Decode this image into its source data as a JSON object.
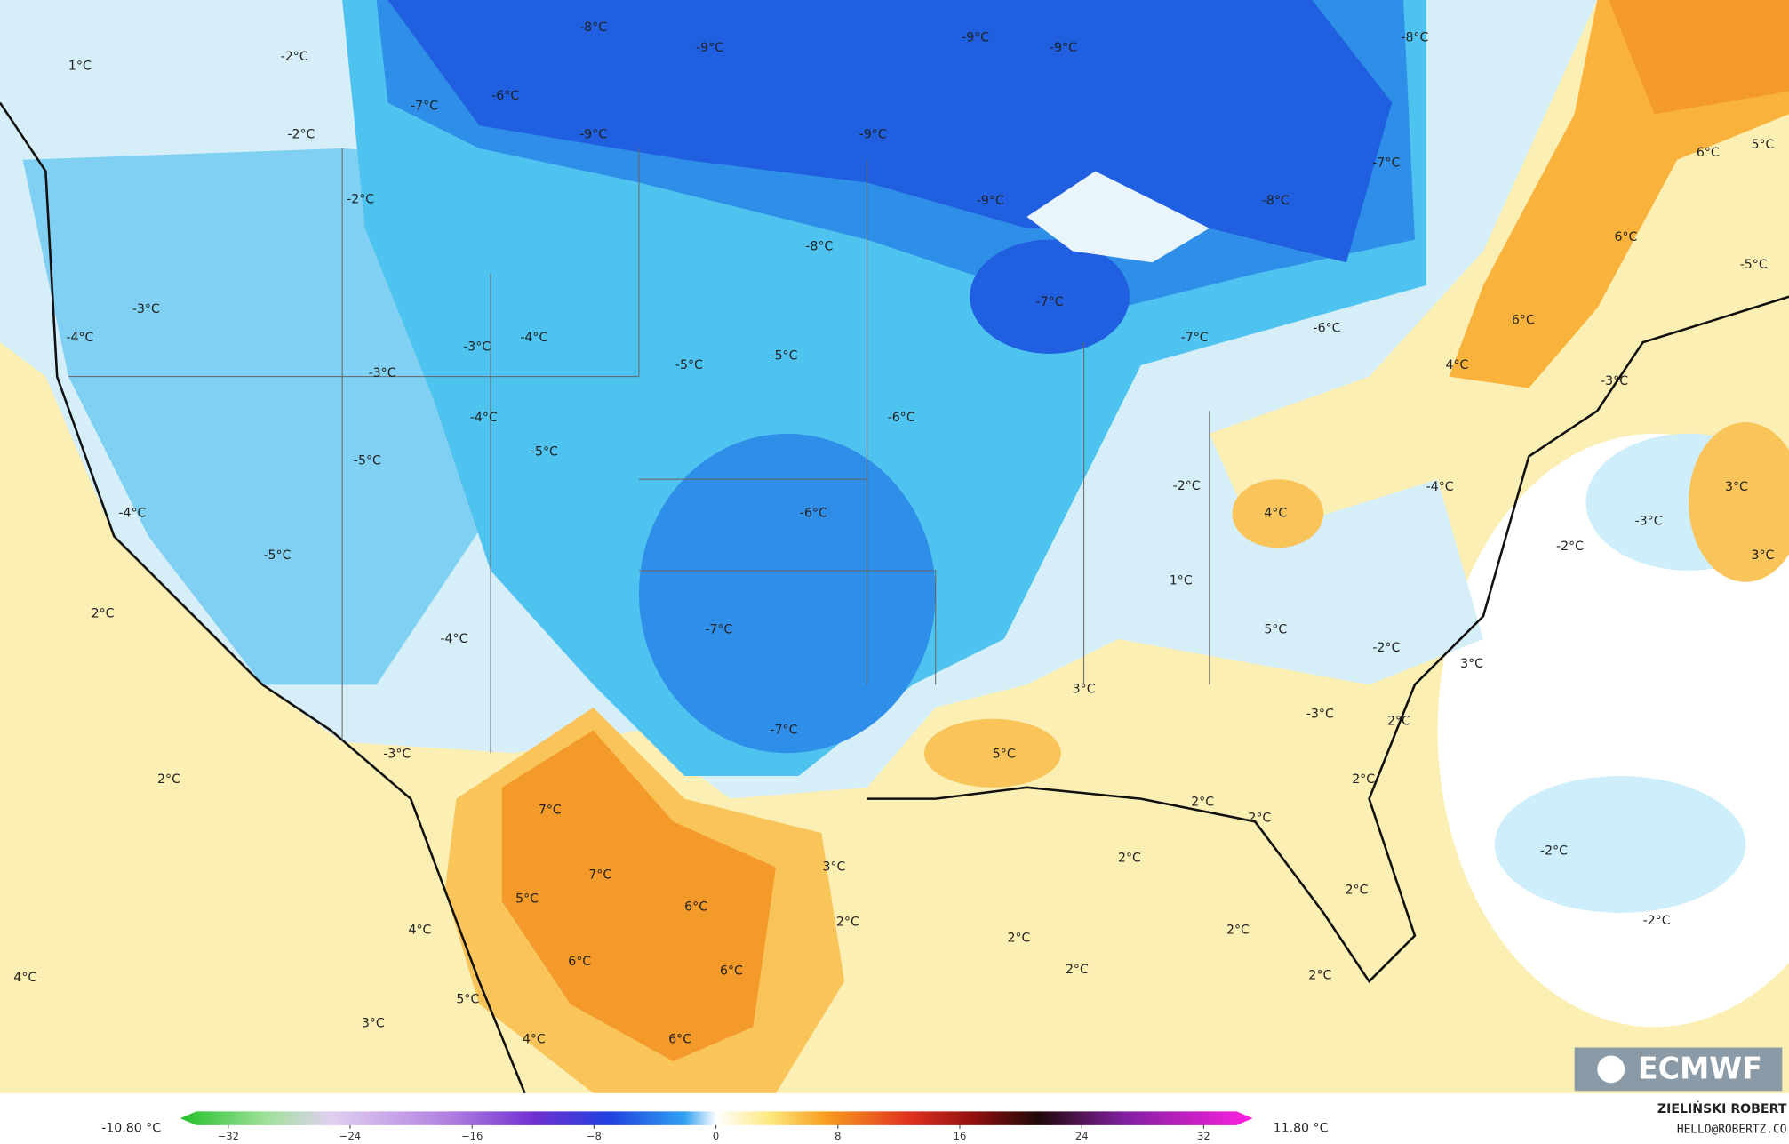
{
  "map": {
    "labels": [
      "1°C",
      "-2°C",
      "-8°C",
      "-9°C",
      "-9°C",
      "-9°C",
      "-8°C",
      "-7°C",
      "-6°C",
      "-2°C",
      "-9°C",
      "-9°C",
      "-7°C",
      "-2°C",
      "-9°C",
      "-8°C",
      "6°C",
      "5°C",
      "-8°C",
      "6°C",
      "-5°C",
      "-3°C",
      "-7°C",
      "-4°C",
      "-3°C",
      "-4°C",
      "-5°C",
      "-5°C",
      "-7°C",
      "-6°C",
      "6°C",
      "-3°C",
      "4°C",
      "-3°C",
      "-4°C",
      "-6°C",
      "-5°C",
      "-5°C",
      "-2°C",
      "-4°C",
      "3°C",
      "-4°C",
      "-6°C",
      "4°C",
      "-3°C",
      "-2°C",
      "3°C",
      "-5°C",
      "2°C",
      "1°C",
      "5°C",
      "-7°C",
      "-4°C",
      "-2°C",
      "3°C",
      "3°C",
      "-7°C",
      "-3°C",
      "2°C",
      "-3°C",
      "5°C",
      "2°C",
      "2°C",
      "7°C",
      "2°C",
      "2°C",
      "-2°C",
      "7°C",
      "2°C",
      "3°C",
      "5°C",
      "2°C",
      "6°C",
      "-2°C",
      "2°C",
      "4°C",
      "2°C",
      "2°C",
      "6°C",
      "6°C",
      "2°C",
      "2°C",
      "4°C",
      "5°C",
      "3°C",
      "4°C",
      "6°C"
    ],
    "logo": "ECMWF"
  },
  "colorbar": {
    "min_label": "-10.80 °C",
    "max_label": "11.80 °C",
    "ticks": [
      {
        "value": -32,
        "label": "−32"
      },
      {
        "value": -24,
        "label": "−24"
      },
      {
        "value": -16,
        "label": "−16"
      },
      {
        "value": -8,
        "label": "−8"
      },
      0,
      8,
      16,
      24,
      32
    ]
  },
  "credit": {
    "name": "ZIELIŃSKI ROBERT",
    "email": "HELLO@ROBERTZ.CO"
  }
}
